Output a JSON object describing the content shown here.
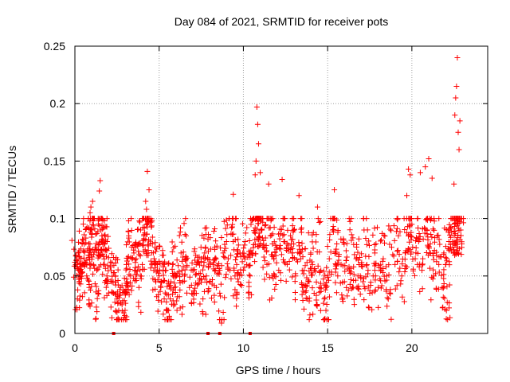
{
  "chart_data": {
    "type": "scatter",
    "title": "Day 084 of 2021, SRMTID for receiver pots",
    "xlabel": "GPS time / hours",
    "ylabel": "SRMTID / TECUs",
    "xlim": [
      0,
      24.5
    ],
    "ylim": [
      0,
      0.25
    ],
    "xticks": [
      0,
      5,
      10,
      15,
      20
    ],
    "xtick_labels": [
      "0",
      "5",
      "10",
      "15",
      "20"
    ],
    "yticks": [
      0,
      0.05,
      0.1,
      0.15,
      0.2,
      0.25
    ],
    "ytick_labels": [
      "0",
      "0.05",
      "0.1",
      "0.15",
      "0.2",
      "0.25"
    ],
    "grid": true,
    "legend": "none",
    "marker": "plus",
    "series_color": "#ff0000",
    "points": [
      [
        0.0,
        0.062
      ],
      [
        0.1,
        0.058
      ],
      [
        0.15,
        0.03
      ],
      [
        0.2,
        0.07
      ],
      [
        0.3,
        0.055
      ],
      [
        0.35,
        0.065
      ],
      [
        0.4,
        0.048
      ],
      [
        0.5,
        0.072
      ],
      [
        0.6,
        0.06
      ],
      [
        0.65,
        0.083
      ],
      [
        0.7,
        0.05
      ],
      [
        0.8,
        0.068
      ],
      [
        0.85,
        0.04
      ],
      [
        0.9,
        0.105
      ],
      [
        0.95,
        0.11
      ],
      [
        1.0,
        0.09
      ],
      [
        1.05,
        0.115
      ],
      [
        1.1,
        0.06
      ],
      [
        1.2,
        0.075
      ],
      [
        1.25,
        0.013
      ],
      [
        1.3,
        0.055
      ],
      [
        1.4,
        0.07
      ],
      [
        1.45,
        0.124
      ],
      [
        1.5,
        0.133
      ],
      [
        1.55,
        0.09
      ],
      [
        1.6,
        0.085
      ],
      [
        1.7,
        0.06
      ],
      [
        1.75,
        0.098
      ],
      [
        1.8,
        0.072
      ],
      [
        1.9,
        0.05
      ],
      [
        2.0,
        0.066
      ],
      [
        2.1,
        0.058
      ],
      [
        2.2,
        0.045
      ],
      [
        2.3,
        0.035
      ],
      [
        2.4,
        0.05
      ],
      [
        2.5,
        0.03
      ],
      [
        2.6,
        0.02
      ],
      [
        2.7,
        0.04
      ],
      [
        2.8,
        0.025
      ],
      [
        2.9,
        0.018
      ],
      [
        3.0,
        0.035
      ],
      [
        3.05,
        0.06
      ],
      [
        3.1,
        0.045
      ],
      [
        3.2,
        0.083
      ],
      [
        3.3,
        0.05
      ],
      [
        3.4,
        0.065
      ],
      [
        3.5,
        0.07
      ],
      [
        3.6,
        0.055
      ],
      [
        3.7,
        0.076
      ],
      [
        3.8,
        0.04
      ],
      [
        3.9,
        0.09
      ],
      [
        4.0,
        0.06
      ],
      [
        4.1,
        0.085
      ],
      [
        4.2,
        0.115
      ],
      [
        4.25,
        0.108
      ],
      [
        4.3,
        0.141
      ],
      [
        4.4,
        0.125
      ],
      [
        4.5,
        0.1
      ],
      [
        4.6,
        0.078
      ],
      [
        4.7,
        0.065
      ],
      [
        4.8,
        0.045
      ],
      [
        4.9,
        0.06
      ],
      [
        5.0,
        0.05
      ],
      [
        5.1,
        0.04
      ],
      [
        5.2,
        0.068
      ],
      [
        5.3,
        0.03
      ],
      [
        5.4,
        0.055
      ],
      [
        5.5,
        0.02
      ],
      [
        5.6,
        0.015
      ],
      [
        5.7,
        0.045
      ],
      [
        5.8,
        0.06
      ],
      [
        5.9,
        0.04
      ],
      [
        6.0,
        0.05
      ],
      [
        6.2,
        0.032
      ],
      [
        6.3,
        0.07
      ],
      [
        6.4,
        0.045
      ],
      [
        6.5,
        0.05
      ],
      [
        6.6,
        0.085
      ],
      [
        6.8,
        0.04
      ],
      [
        7.0,
        0.055
      ],
      [
        7.1,
        0.035
      ],
      [
        7.2,
        0.06
      ],
      [
        7.4,
        0.048
      ],
      [
        7.5,
        0.065
      ],
      [
        7.6,
        0.03
      ],
      [
        7.7,
        0.07
      ],
      [
        7.8,
        0.05
      ],
      [
        7.9,
        0.082
      ],
      [
        8.0,
        0.045
      ],
      [
        8.2,
        0.06
      ],
      [
        8.3,
        0.075
      ],
      [
        8.4,
        0.04
      ],
      [
        8.6,
        0.055
      ],
      [
        8.7,
        0.009
      ],
      [
        8.8,
        0.07
      ],
      [
        9.0,
        0.08
      ],
      [
        9.1,
        0.065
      ],
      [
        9.3,
        0.092
      ],
      [
        9.4,
        0.121
      ],
      [
        9.5,
        0.05
      ],
      [
        9.6,
        0.06
      ],
      [
        9.7,
        0.045
      ],
      [
        9.8,
        0.07
      ],
      [
        10.0,
        0.055
      ],
      [
        10.1,
        0.08
      ],
      [
        10.2,
        0.06
      ],
      [
        10.4,
        0.05
      ],
      [
        10.5,
        0.07
      ],
      [
        10.6,
        0.1
      ],
      [
        10.7,
        0.138
      ],
      [
        10.75,
        0.15
      ],
      [
        10.8,
        0.197
      ],
      [
        10.85,
        0.182
      ],
      [
        10.9,
        0.165
      ],
      [
        11.0,
        0.14
      ],
      [
        11.1,
        0.09
      ],
      [
        11.2,
        0.075
      ],
      [
        11.4,
        0.06
      ],
      [
        11.5,
        0.13
      ],
      [
        11.6,
        0.085
      ],
      [
        11.7,
        0.05
      ],
      [
        11.8,
        0.065
      ],
      [
        12.0,
        0.075
      ],
      [
        12.1,
        0.055
      ],
      [
        12.3,
        0.134
      ],
      [
        12.4,
        0.08
      ],
      [
        12.6,
        0.06
      ],
      [
        12.8,
        0.085
      ],
      [
        12.9,
        0.07
      ],
      [
        13.0,
        0.09
      ],
      [
        13.1,
        0.05
      ],
      [
        13.3,
        0.12
      ],
      [
        13.4,
        0.065
      ],
      [
        13.5,
        0.04
      ],
      [
        13.6,
        0.055
      ],
      [
        13.8,
        0.03
      ],
      [
        13.9,
        0.045
      ],
      [
        14.0,
        0.07
      ],
      [
        14.1,
        0.06
      ],
      [
        14.2,
        0.035
      ],
      [
        14.4,
        0.11
      ],
      [
        14.5,
        0.04
      ],
      [
        14.6,
        0.055
      ],
      [
        14.8,
        0.03
      ],
      [
        14.9,
        0.02
      ],
      [
        15.0,
        0.05
      ],
      [
        15.1,
        0.065
      ],
      [
        15.3,
        0.09
      ],
      [
        15.4,
        0.125
      ],
      [
        15.5,
        0.07
      ],
      [
        15.6,
        0.05
      ],
      [
        15.8,
        0.06
      ],
      [
        16.0,
        0.045
      ],
      [
        16.1,
        0.072
      ],
      [
        16.3,
        0.055
      ],
      [
        16.4,
        0.1
      ],
      [
        16.5,
        0.04
      ],
      [
        16.7,
        0.065
      ],
      [
        16.8,
        0.05
      ],
      [
        17.0,
        0.06
      ],
      [
        17.1,
        0.045
      ],
      [
        17.3,
        0.1
      ],
      [
        17.4,
        0.055
      ],
      [
        17.5,
        0.035
      ],
      [
        17.7,
        0.05
      ],
      [
        17.8,
        0.07
      ],
      [
        18.0,
        0.04
      ],
      [
        18.2,
        0.055
      ],
      [
        18.3,
        0.065
      ],
      [
        18.5,
        0.05
      ],
      [
        18.6,
        0.03
      ],
      [
        18.8,
        0.075
      ],
      [
        19.0,
        0.06
      ],
      [
        19.2,
        0.085
      ],
      [
        19.4,
        0.05
      ],
      [
        19.6,
        0.07
      ],
      [
        19.7,
        0.12
      ],
      [
        19.8,
        0.143
      ],
      [
        19.9,
        0.138
      ],
      [
        20.0,
        0.095
      ],
      [
        20.2,
        0.065
      ],
      [
        20.4,
        0.08
      ],
      [
        20.5,
        0.14
      ],
      [
        20.6,
        0.055
      ],
      [
        20.8,
        0.145
      ],
      [
        20.9,
        0.09
      ],
      [
        21.0,
        0.152
      ],
      [
        21.1,
        0.07
      ],
      [
        21.2,
        0.135
      ],
      [
        21.3,
        0.05
      ],
      [
        21.5,
        0.085
      ],
      [
        21.6,
        0.06
      ],
      [
        21.8,
        0.04
      ],
      [
        21.9,
        0.07
      ],
      [
        22.0,
        0.06
      ],
      [
        22.1,
        0.027
      ],
      [
        22.2,
        0.08
      ],
      [
        22.3,
        0.075
      ],
      [
        22.4,
        0.1
      ],
      [
        22.5,
        0.13
      ],
      [
        22.55,
        0.19
      ],
      [
        22.6,
        0.205
      ],
      [
        22.65,
        0.215
      ],
      [
        22.7,
        0.24
      ],
      [
        22.75,
        0.175
      ],
      [
        22.8,
        0.16
      ],
      [
        22.85,
        0.185
      ],
      [
        22.9,
        0.09
      ]
    ],
    "zero_markers_x": [
      2.3,
      7.9,
      8.6,
      10.4
    ]
  }
}
